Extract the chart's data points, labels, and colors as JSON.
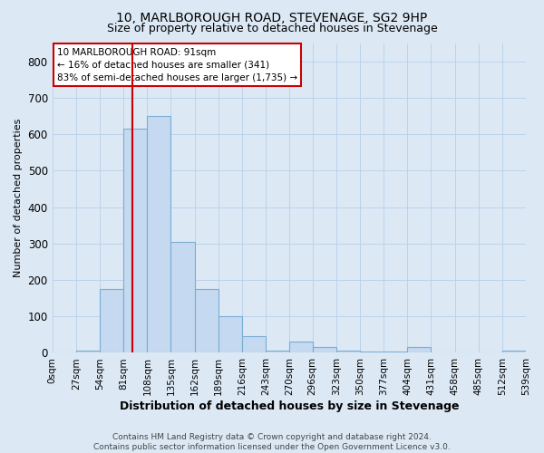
{
  "title": "10, MARLBOROUGH ROAD, STEVENAGE, SG2 9HP",
  "subtitle": "Size of property relative to detached houses in Stevenage",
  "xlabel": "Distribution of detached houses by size in Stevenage",
  "ylabel": "Number of detached properties",
  "bin_edges": [
    0,
    27,
    54,
    81,
    108,
    135,
    162,
    189,
    216,
    243,
    270,
    296,
    323,
    350,
    377,
    404,
    431,
    458,
    485,
    512,
    539
  ],
  "bar_heights": [
    2,
    5,
    175,
    615,
    650,
    305,
    175,
    100,
    45,
    5,
    30,
    15,
    5,
    3,
    3,
    15,
    2,
    2,
    2,
    5
  ],
  "bar_color": "#c5d9f0",
  "bar_edge_color": "#7aadd4",
  "property_line_x": 91,
  "property_line_color": "#cc0000",
  "ylim": [
    0,
    850
  ],
  "annotation_line1": "10 MARLBOROUGH ROAD: 91sqm",
  "annotation_line2": "← 16% of detached houses are smaller (341)",
  "annotation_line3": "83% of semi-detached houses are larger (1,735) →",
  "annotation_box_facecolor": "#ffffff",
  "annotation_box_edgecolor": "#cc0000",
  "footnote": "Contains HM Land Registry data © Crown copyright and database right 2024.\nContains public sector information licensed under the Open Government Licence v3.0.",
  "background_color": "#dce9f5",
  "grid_color": "#b8cfe8",
  "title_fontsize": 10,
  "subtitle_fontsize": 9,
  "xlabel_fontsize": 9,
  "ylabel_fontsize": 8,
  "tick_fontsize": 7.5,
  "annotation_fontsize": 7.5,
  "footnote_fontsize": 6.5
}
